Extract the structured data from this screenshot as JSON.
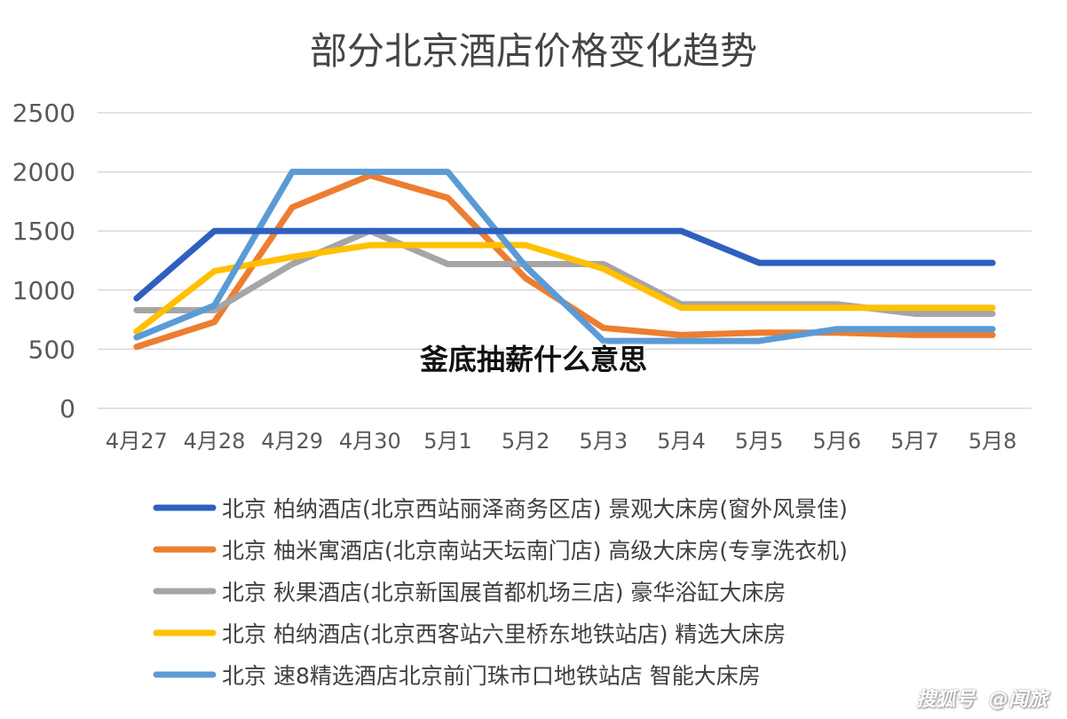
{
  "chart_data": {
    "type": "line",
    "title": "部分北京酒店价格变化趋势",
    "xlabel": "",
    "ylabel": "",
    "ylim": [
      0,
      2500
    ],
    "yticks": [
      "0",
      "500",
      "1000",
      "1500",
      "2000",
      "2500"
    ],
    "grid": true,
    "legend_position": "bottom",
    "categories": [
      "4月27",
      "4月28",
      "4月29",
      "4月30",
      "5月1",
      "5月2",
      "5月3",
      "5月4",
      "5月5",
      "5月6",
      "5月7",
      "5月8"
    ],
    "series": [
      {
        "name": "北京 柏纳酒店(北京西站丽泽商务区店) 景观大床房(窗外风景佳)",
        "color": "#2f5fbf",
        "values": [
          930,
          1500,
          1500,
          1500,
          1500,
          1500,
          1500,
          1500,
          1230,
          1230,
          1230,
          1230
        ]
      },
      {
        "name": "北京 柚米寓酒店(北京南站天坛南门店) 高级大床房(专享洗衣机)",
        "color": "#ed7d31",
        "values": [
          520,
          730,
          1700,
          1970,
          1780,
          1100,
          680,
          620,
          640,
          640,
          620,
          620
        ]
      },
      {
        "name": "北京 秋果酒店(北京新国展首都机场三店) 豪华浴缸大床房",
        "color": "#a5a5a5",
        "values": [
          830,
          830,
          1220,
          1500,
          1220,
          1220,
          1220,
          880,
          880,
          880,
          800,
          800
        ]
      },
      {
        "name": "北京 柏纳酒店(北京西客站六里桥东地铁站店) 精选大床房",
        "color": "#ffc000",
        "values": [
          650,
          1160,
          1280,
          1380,
          1380,
          1380,
          1180,
          850,
          850,
          850,
          850,
          850
        ]
      },
      {
        "name": "北京 速8精选酒店北京前门珠市口地铁站店 智能大床房",
        "color": "#5b9bd5",
        "values": [
          600,
          870,
          2000,
          2000,
          2000,
          1200,
          570,
          570,
          570,
          670,
          670,
          670
        ]
      }
    ]
  },
  "overlay": {
    "caption": "釜底抽薪什么意思",
    "watermark_brand": "搜狐号",
    "watermark_account": "@闻旅"
  }
}
